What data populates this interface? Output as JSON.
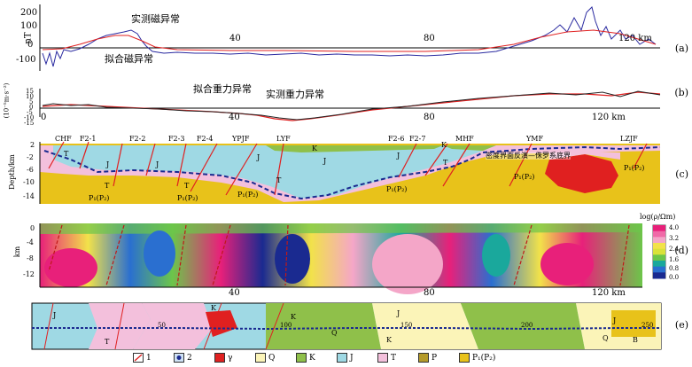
{
  "panel_labels": [
    "(a)",
    "(b)",
    "(c)",
    "(d)",
    "(e)"
  ],
  "panel_a": {
    "ylabel": "nT",
    "yticks": [
      "200",
      "100",
      "0",
      "-100"
    ],
    "xticks": [
      "40",
      "80",
      "120 km"
    ],
    "label_observed": "实测磁异常",
    "label_fitted": "拟合磁异常",
    "colors": {
      "observed": "#2a2aa0",
      "fitted": "#e02020"
    }
  },
  "panel_b": {
    "ylabel": "(10⁻⁵m·s⁻²)",
    "yticks": [
      "15",
      "10",
      "5",
      "0",
      "-5",
      "-10",
      "-15"
    ],
    "xticks": [
      "0",
      "40",
      "80",
      "120 km"
    ],
    "label_fitted": "拟合重力异常",
    "label_observed": "实测重力异常"
  },
  "panel_c": {
    "ylabel": "Depth/km",
    "yticks": [
      "2",
      "-2",
      "-6",
      "-10",
      "-14"
    ],
    "faults": [
      "CHF",
      "F2-1",
      "F2-2",
      "F2-3",
      "F2-4",
      "YPJF",
      "LYF",
      "F2-6",
      "F2-7",
      "MHF",
      "YMF",
      "LZJF"
    ],
    "units": [
      "T",
      "J",
      "K",
      "P₁(P₂)"
    ],
    "annotation": "密度界面反演—侏罗系底界"
  },
  "panel_d": {
    "ylabel": "km",
    "yticks": [
      "0",
      "-4",
      "-8",
      "-12"
    ],
    "xticks": [
      "40",
      "80",
      "120 km"
    ],
    "colorbar_title": "log(ρ/Ωm)",
    "colorbar_ticks": [
      "4.0",
      "3.2",
      "2.4",
      "1.6",
      "0.8",
      "0.0"
    ],
    "colorbar_colors": [
      "#e8207a",
      "#f06aa8",
      "#f4a6c8",
      "#f2e24a",
      "#d9e23a",
      "#6cc64a",
      "#1aa89c",
      "#2a6fd0",
      "#1a2a90"
    ]
  },
  "panel_e": {
    "map_labels": [
      "J",
      "T",
      "K",
      "K",
      "Q",
      "J",
      "K",
      "B",
      "Q",
      "J",
      "50",
      "100",
      "150",
      "200",
      "250"
    ]
  },
  "legend": [
    {
      "id": "1",
      "label": "1",
      "kind": "fault"
    },
    {
      "id": "2",
      "label": "2",
      "kind": "site"
    },
    {
      "id": "gamma",
      "label": "γ",
      "color": "#e02020"
    },
    {
      "id": "Q",
      "label": "Q",
      "color": "#fbf4b8"
    },
    {
      "id": "K",
      "label": "K",
      "color": "#8fc04a"
    },
    {
      "id": "J",
      "label": "J",
      "color": "#9fd9e4"
    },
    {
      "id": "T",
      "label": "T",
      "color": "#f3c0dc"
    },
    {
      "id": "P",
      "label": "P",
      "color": "#b49a2a"
    },
    {
      "id": "P1P2",
      "label": "P₁(P₂)",
      "color": "#e8c21a"
    }
  ]
}
